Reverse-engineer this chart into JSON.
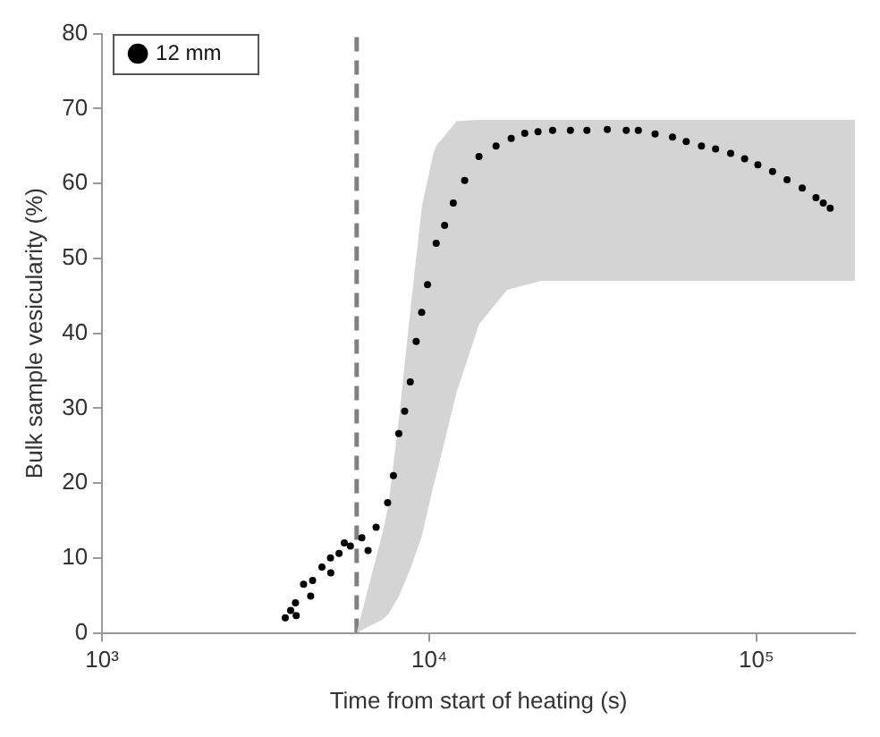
{
  "chart_data": {
    "type": "scatter",
    "xlabel": "Time from start of heating (s)",
    "ylabel": "Bulk sample vesicularity (%)",
    "log": "x",
    "xlim": [
      1000,
      200000
    ],
    "xticks": [
      {
        "value": 1000,
        "label": "10³"
      },
      {
        "value": 10000,
        "label": "10⁴"
      },
      {
        "value": 100000,
        "label": "10⁵"
      }
    ],
    "ylim": [
      0,
      80
    ],
    "yticks": [
      0,
      10,
      20,
      30,
      40,
      50,
      60,
      70,
      80
    ],
    "grid": false,
    "legend": "top left",
    "series": [
      {
        "type": "area",
        "color": "#d4d4d4",
        "x": [
          6000,
          7200,
          7500,
          8100,
          8800,
          9500,
          10300,
          10500,
          12100,
          14200,
          17300,
          22000,
          200000
        ],
        "values": [
          null,
          null,
          null,
          null,
          null,
          null,
          null,
          null,
          null,
          null,
          null,
          null,
          null
        ],
        "lower": [
          0,
          1.8,
          2.5,
          5,
          8.8,
          13,
          19.7,
          21,
          32,
          41.2,
          45.8,
          47,
          47
        ],
        "upper": [
          0,
          13.4,
          17,
          29,
          44,
          57,
          64,
          65,
          68.3,
          68.5,
          68.5,
          68.5,
          68.5
        ]
      },
      {
        "type": "scatter",
        "name": "12 mm",
        "color": "#000000",
        "marker": "circle",
        "x": [
          3630,
          3770,
          3900,
          3920,
          4130,
          4340,
          4400,
          4700,
          4990,
          5000,
          5300,
          5500,
          5740,
          6220,
          6500,
          6880,
          7460,
          7770,
          8070,
          8410,
          8750,
          9120,
          9480,
          9880,
          10500,
          11140,
          11840,
          12830,
          14190,
          16000,
          17800,
          19580,
          21500,
          23820,
          27000,
          30330,
          35000,
          40000,
          43550,
          49000,
          55390,
          61000,
          67900,
          75000,
          83400,
          92000,
          101000,
          112000,
          124000,
          138000,
          152000,
          160000,
          168000
        ],
        "values": [
          2,
          3,
          4,
          2.3,
          6.5,
          4.9,
          7,
          8.8,
          10,
          8,
          10.6,
          12,
          11.6,
          12.7,
          11,
          14.1,
          17.4,
          21,
          26.6,
          29.6,
          33.5,
          38.9,
          42.8,
          46.5,
          52,
          54.4,
          57.4,
          60.4,
          63.6,
          65,
          66,
          66.7,
          66.9,
          67.1,
          67.1,
          67.1,
          67.2,
          67.1,
          67.1,
          66.6,
          66.2,
          65.6,
          65,
          64.6,
          64,
          63.3,
          62.5,
          61.6,
          60.5,
          59.4,
          58.1,
          57.4,
          56.7
        ]
      }
    ],
    "ref_lines": [
      {
        "axis": "x",
        "value": 6000,
        "color": "#808080",
        "line_style": "dashed"
      }
    ]
  }
}
